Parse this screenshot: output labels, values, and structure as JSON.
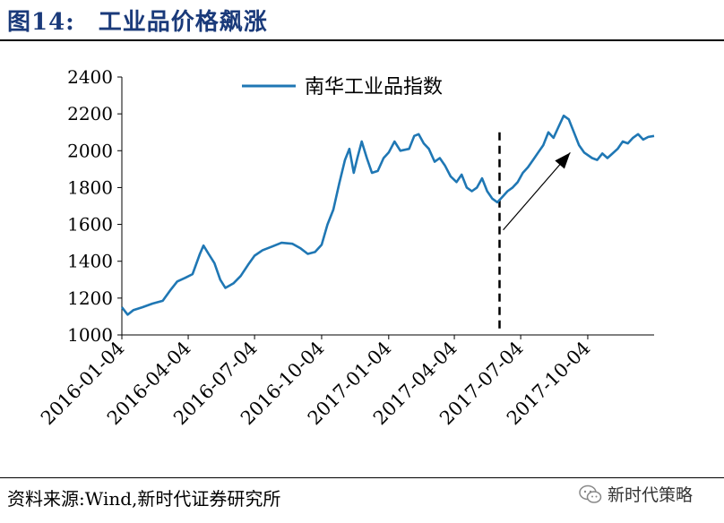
{
  "header": {
    "figure_number": "图14:",
    "figure_title": "工业品价格飙涨"
  },
  "footer": {
    "source": "资料来源:Wind,新时代证券研究所"
  },
  "watermark": {
    "text": "新时代策略",
    "icon": "wechat-icon"
  },
  "colors": {
    "line": "#1f77b4",
    "title": "#1a3a7a"
  },
  "chart_data": {
    "type": "line",
    "title": "",
    "xlabel": "",
    "ylabel": "",
    "ylim": [
      1000,
      2400
    ],
    "yticks": [
      1000,
      1200,
      1400,
      1600,
      1800,
      2000,
      2200,
      2400
    ],
    "xticks": [
      "2016-01-04",
      "2016-04-04",
      "2016-07-04",
      "2016-10-04",
      "2017-01-04",
      "2017-04-04",
      "2017-07-04",
      "2017-10-04"
    ],
    "legend": {
      "position": "top-center"
    },
    "grid": false,
    "series": [
      {
        "name": "南华工业品指数",
        "points": [
          [
            "2016-01-04",
            1150
          ],
          [
            "2016-01-12",
            1110
          ],
          [
            "2016-01-20",
            1135
          ],
          [
            "2016-02-01",
            1150
          ],
          [
            "2016-02-15",
            1170
          ],
          [
            "2016-02-29",
            1185
          ],
          [
            "2016-03-10",
            1240
          ],
          [
            "2016-03-20",
            1290
          ],
          [
            "2016-03-31",
            1310
          ],
          [
            "2016-04-10",
            1330
          ],
          [
            "2016-04-20",
            1440
          ],
          [
            "2016-04-25",
            1485
          ],
          [
            "2016-05-02",
            1440
          ],
          [
            "2016-05-10",
            1390
          ],
          [
            "2016-05-18",
            1300
          ],
          [
            "2016-05-25",
            1255
          ],
          [
            "2016-06-05",
            1280
          ],
          [
            "2016-06-15",
            1320
          ],
          [
            "2016-06-25",
            1380
          ],
          [
            "2016-07-04",
            1430
          ],
          [
            "2016-07-15",
            1460
          ],
          [
            "2016-07-28",
            1480
          ],
          [
            "2016-08-10",
            1500
          ],
          [
            "2016-08-25",
            1495
          ],
          [
            "2016-09-05",
            1470
          ],
          [
            "2016-09-15",
            1440
          ],
          [
            "2016-09-25",
            1450
          ],
          [
            "2016-10-04",
            1490
          ],
          [
            "2016-10-12",
            1600
          ],
          [
            "2016-10-20",
            1680
          ],
          [
            "2016-10-28",
            1820
          ],
          [
            "2016-11-05",
            1950
          ],
          [
            "2016-11-11",
            2010
          ],
          [
            "2016-11-17",
            1880
          ],
          [
            "2016-11-22",
            1960
          ],
          [
            "2016-11-28",
            2050
          ],
          [
            "2016-12-05",
            1960
          ],
          [
            "2016-12-12",
            1880
          ],
          [
            "2016-12-20",
            1890
          ],
          [
            "2016-12-28",
            1960
          ],
          [
            "2017-01-04",
            1990
          ],
          [
            "2017-01-12",
            2050
          ],
          [
            "2017-01-20",
            2000
          ],
          [
            "2017-02-01",
            2010
          ],
          [
            "2017-02-08",
            2080
          ],
          [
            "2017-02-14",
            2090
          ],
          [
            "2017-02-21",
            2040
          ],
          [
            "2017-02-28",
            2010
          ],
          [
            "2017-03-08",
            1940
          ],
          [
            "2017-03-15",
            1960
          ],
          [
            "2017-03-22",
            1920
          ],
          [
            "2017-03-30",
            1860
          ],
          [
            "2017-04-07",
            1830
          ],
          [
            "2017-04-14",
            1870
          ],
          [
            "2017-04-21",
            1800
          ],
          [
            "2017-04-28",
            1780
          ],
          [
            "2017-05-05",
            1800
          ],
          [
            "2017-05-12",
            1850
          ],
          [
            "2017-05-19",
            1780
          ],
          [
            "2017-05-26",
            1740
          ],
          [
            "2017-06-02",
            1720
          ],
          [
            "2017-06-09",
            1750
          ],
          [
            "2017-06-16",
            1780
          ],
          [
            "2017-06-23",
            1800
          ],
          [
            "2017-06-30",
            1830
          ],
          [
            "2017-07-07",
            1880
          ],
          [
            "2017-07-14",
            1910
          ],
          [
            "2017-07-21",
            1950
          ],
          [
            "2017-07-28",
            1990
          ],
          [
            "2017-08-04",
            2030
          ],
          [
            "2017-08-11",
            2100
          ],
          [
            "2017-08-18",
            2070
          ],
          [
            "2017-08-25",
            2130
          ],
          [
            "2017-09-01",
            2190
          ],
          [
            "2017-09-08",
            2170
          ],
          [
            "2017-09-15",
            2100
          ],
          [
            "2017-09-22",
            2030
          ],
          [
            "2017-09-29",
            1990
          ],
          [
            "2017-10-10",
            1960
          ],
          [
            "2017-10-17",
            1950
          ],
          [
            "2017-10-24",
            1985
          ],
          [
            "2017-10-31",
            1960
          ],
          [
            "2017-11-07",
            1985
          ],
          [
            "2017-11-14",
            2010
          ],
          [
            "2017-11-21",
            2050
          ],
          [
            "2017-11-28",
            2040
          ],
          [
            "2017-12-05",
            2070
          ],
          [
            "2017-12-12",
            2090
          ],
          [
            "2017-12-19",
            2060
          ],
          [
            "2017-12-26",
            2075
          ],
          [
            "2018-01-03",
            2080
          ]
        ]
      }
    ],
    "annotations": [
      {
        "type": "vertical-dashed-line",
        "x": "2017-06-05"
      },
      {
        "type": "arrow",
        "from": [
          "2017-06-10",
          1570
        ],
        "to": [
          "2017-09-10",
          1990
        ]
      }
    ]
  }
}
